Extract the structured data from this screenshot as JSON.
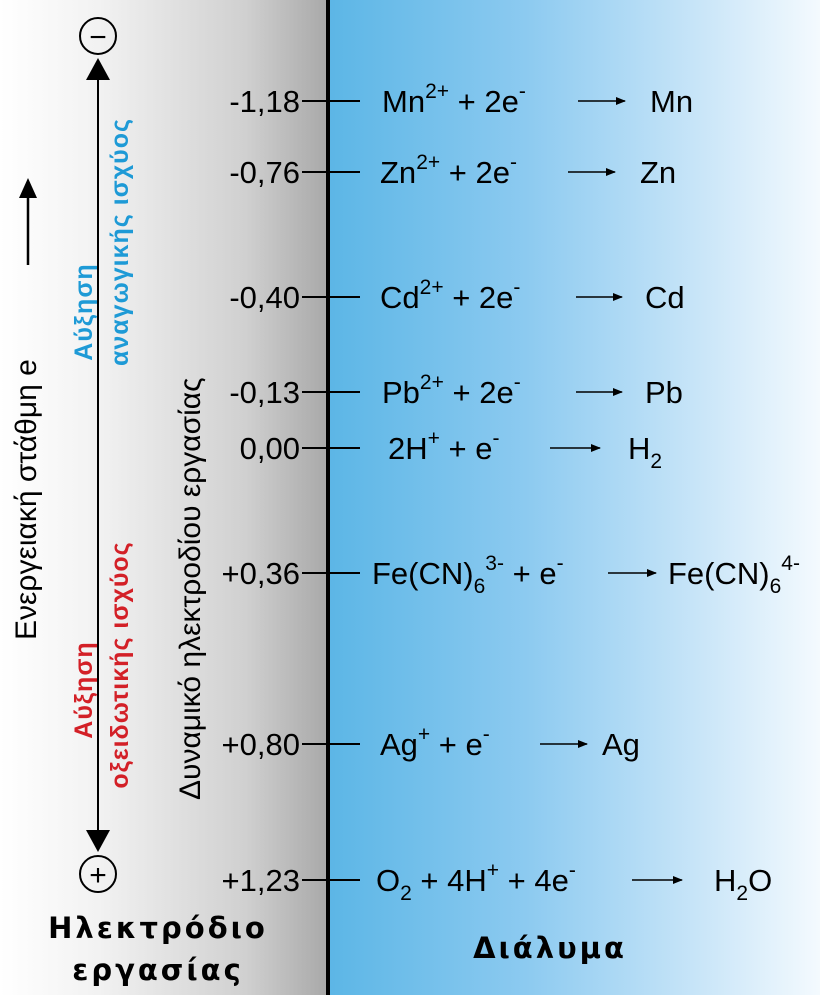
{
  "labels": {
    "energy": "Ενεργειακή στάθμη e",
    "potential": "Δυναμικό ηλεκτροδίου εργασίας",
    "reducing": [
      "Αύξηση",
      "αναγωγικής ισχύος"
    ],
    "oxidizing": [
      "Αύξηση",
      "οξειδωτικής ισχύος"
    ],
    "electrode": [
      "Ηλεκτρόδιο",
      "εργασίας"
    ],
    "solution": "Διάλυμα",
    "minus_sign": "−",
    "plus_sign": "+"
  },
  "colors": {
    "reducing": "#1e9ad6",
    "oxidizing": "#d32027",
    "solution_dark": "#5cb6e6",
    "electrode_dark": "#a9a9a9"
  },
  "reactions": [
    {
      "potential": "-1,18",
      "lhs": [
        {
          "t": "Mn"
        },
        {
          "t": "2+",
          "s": "sup"
        },
        {
          "t": "  +  2e"
        },
        {
          "t": "-",
          "s": "sup"
        }
      ],
      "rhs": [
        {
          "t": "Mn"
        }
      ]
    },
    {
      "potential": "-0,76",
      "lhs": [
        {
          "t": "Zn"
        },
        {
          "t": "2+",
          "s": "sup"
        },
        {
          "t": "  +  2e"
        },
        {
          "t": "-",
          "s": "sup"
        }
      ],
      "rhs": [
        {
          "t": "Zn"
        }
      ]
    },
    {
      "potential": "-0,40",
      "lhs": [
        {
          "t": "Cd"
        },
        {
          "t": "2+",
          "s": "sup"
        },
        {
          "t": "  +  2e"
        },
        {
          "t": "-",
          "s": "sup"
        }
      ],
      "rhs": [
        {
          "t": "Cd"
        }
      ]
    },
    {
      "potential": "-0,13",
      "lhs": [
        {
          "t": "Pb"
        },
        {
          "t": "2+",
          "s": "sup"
        },
        {
          "t": "  +  2e"
        },
        {
          "t": "-",
          "s": "sup"
        }
      ],
      "rhs": [
        {
          "t": "Pb"
        }
      ]
    },
    {
      "potential": "0,00",
      "lhs": [
        {
          "t": "2H"
        },
        {
          "t": "+",
          "s": "sup"
        },
        {
          "t": " + e"
        },
        {
          "t": "-",
          "s": "sup"
        }
      ],
      "rhs": [
        {
          "t": "H"
        },
        {
          "t": "2",
          "s": "sub"
        }
      ]
    },
    {
      "potential": "+0,36",
      "lhs": [
        {
          "t": "Fe(CN)"
        },
        {
          "t": "6",
          "s": "sub"
        },
        {
          "t": "3-",
          "s": "sup"
        },
        {
          "t": " +  e"
        },
        {
          "t": "-",
          "s": "sup"
        }
      ],
      "rhs": [
        {
          "t": "Fe(CN)"
        },
        {
          "t": "6",
          "s": "sub"
        },
        {
          "t": "4-",
          "s": "sup"
        }
      ]
    },
    {
      "potential": "+0,80",
      "lhs": [
        {
          "t": "Ag"
        },
        {
          "t": "+",
          "s": "sup"
        },
        {
          "t": "  +  e"
        },
        {
          "t": "-",
          "s": "sup"
        }
      ],
      "rhs": [
        {
          "t": "Ag"
        }
      ]
    },
    {
      "potential": "+1,23",
      "lhs": [
        {
          "t": "O"
        },
        {
          "t": "2",
          "s": "sub"
        },
        {
          "t": " + 4H"
        },
        {
          "t": "+",
          "s": "sup"
        },
        {
          "t": "  +  4e"
        },
        {
          "t": "-",
          "s": "sup"
        }
      ],
      "rhs": [
        {
          "t": "H"
        },
        {
          "t": "2",
          "s": "sub"
        },
        {
          "t": "O"
        }
      ]
    }
  ]
}
